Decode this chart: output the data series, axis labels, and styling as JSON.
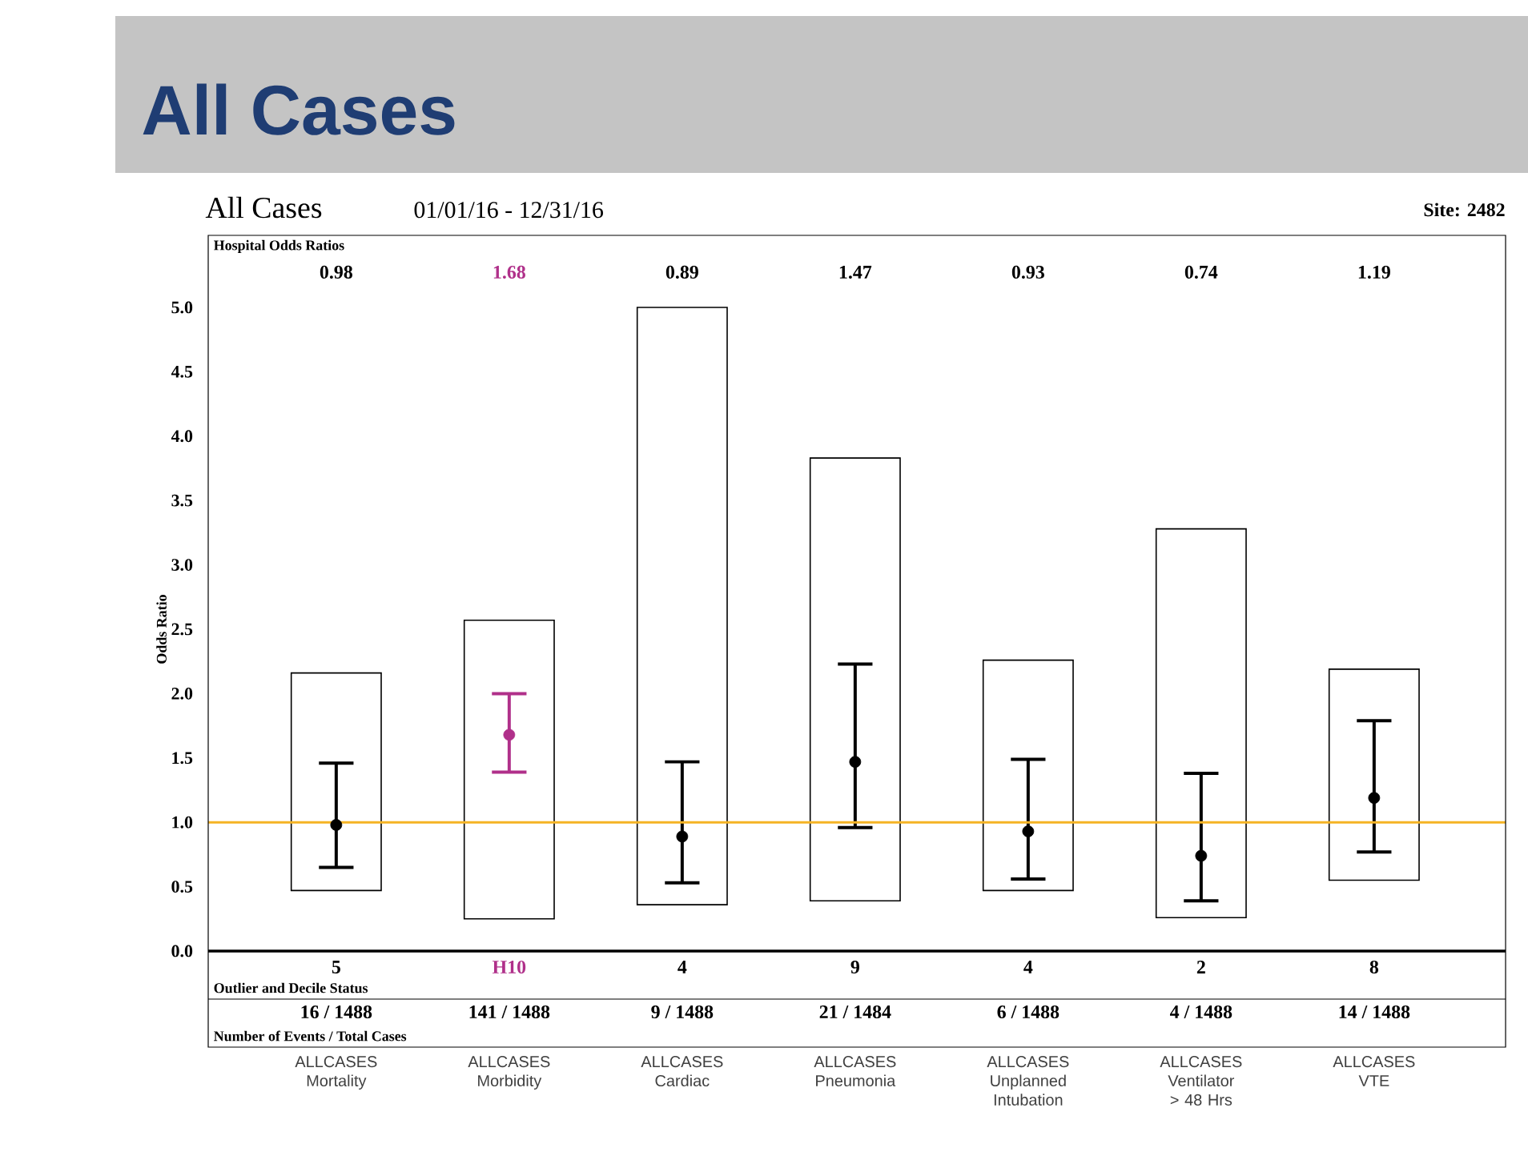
{
  "chart_data": {
    "type": "bar",
    "title": "All Cases",
    "subtitle": "All Cases",
    "ylabel": "Odds Ratio",
    "categories": [
      "ALLCASES Mortality",
      "ALLCASES Morbidity",
      "ALLCASES Cardiac",
      "ALLCASES Pneumonia",
      "ALLCASES Unplanned Intubation",
      "ALLCASES Ventilator > 48 Hrs",
      "ALLCASES VTE"
    ],
    "ylim": [
      0,
      5.0
    ],
    "yticks": [
      {
        "value": 0,
        "label": "0.0"
      },
      {
        "value": 0.5,
        "label": "0.5"
      },
      {
        "value": 1,
        "label": "1.0"
      },
      {
        "value": 1.5,
        "label": "1.5"
      },
      {
        "value": 2,
        "label": "2.0"
      },
      {
        "value": 2.5,
        "label": "2.5"
      },
      {
        "value": 3,
        "label": "3.0"
      },
      {
        "value": 3.5,
        "label": "3.5"
      },
      {
        "value": 4,
        "label": "4.0"
      },
      {
        "value": 4.5,
        "label": "4.5"
      },
      {
        "value": 5,
        "label": "5.0"
      }
    ],
    "series": [
      {
        "color": "#000000",
        "base": [
          0.47,
          0.25,
          0.36,
          0.39,
          0.47,
          0.26,
          0.55
        ],
        "values": [
          1.69,
          2.32,
          4.64,
          3.44,
          1.79,
          3.02,
          1.64
        ]
      },
      {
        "type": "scatter",
        "marker": "circle",
        "colors": [
          "#000000",
          "#b0308a",
          "#000000",
          "#000000",
          "#000000",
          "#000000",
          "#000000"
        ],
        "values": [
          0.98,
          1.68,
          0.89,
          1.47,
          0.93,
          0.74,
          1.19
        ],
        "errors": [
          [
            0.65,
            1.46
          ],
          [
            1.39,
            2.0
          ],
          [
            0.53,
            1.47
          ],
          [
            0.96,
            2.23
          ],
          [
            0.56,
            1.49
          ],
          [
            0.39,
            1.38
          ],
          [
            0.77,
            1.79
          ]
        ],
        "value_labels": [
          "0.98",
          "1.68",
          "0.89",
          "1.47",
          "0.93",
          "0.74",
          "1.19"
        ]
      }
    ],
    "ref_lines": [
      {
        "axis": "y",
        "value": 1.0,
        "color": "#f5b324"
      }
    ],
    "annotations": [
      "01/01/16 - 12/31/16",
      "Site: 2482",
      "Hospital Odds Ratios",
      "Outlier and Decile Status",
      "Number of Events / Total Cases",
      "5",
      "H10",
      "4",
      "9",
      "4",
      "2",
      "8",
      "16 / 1488",
      "141 / 1488",
      "9 / 1488",
      "21 / 1484",
      "6 / 1488",
      "4 / 1488",
      "14 / 1488"
    ]
  }
}
